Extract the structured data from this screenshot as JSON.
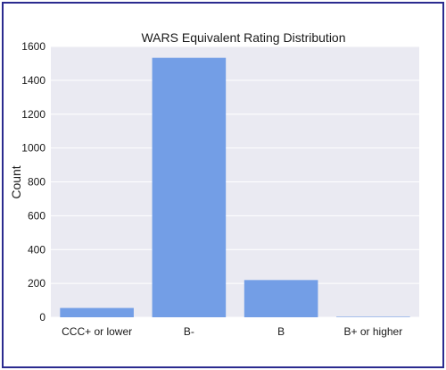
{
  "chart_data": {
    "type": "bar",
    "title": "WARS Equivalent Rating Distribution",
    "xlabel": "",
    "ylabel": "Count",
    "categories": [
      "CCC+ or lower",
      "B-",
      "B",
      "B+ or higher"
    ],
    "values": [
      55,
      1533,
      220,
      3
    ],
    "ylim": [
      0,
      1600
    ],
    "yticks": [
      0,
      200,
      400,
      600,
      800,
      1000,
      1200,
      1400,
      1600
    ],
    "grid": true,
    "legend": "none",
    "colors": {
      "bar": "#739ee6",
      "background": "#eaeaf2",
      "grid": "#ffffff",
      "frame_border": "#2b2b8f"
    }
  }
}
